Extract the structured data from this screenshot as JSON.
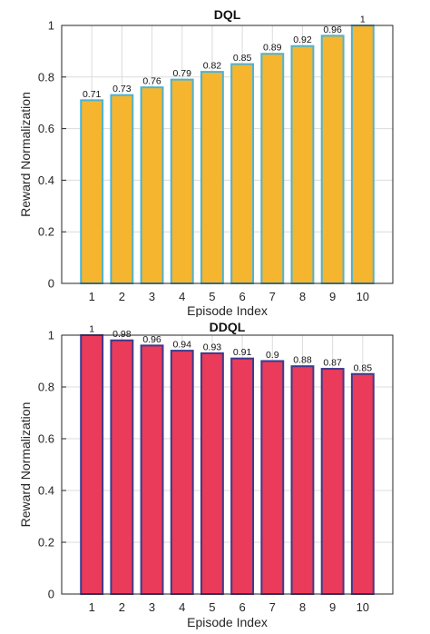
{
  "chart_data": [
    {
      "type": "bar",
      "title": "DQL",
      "xlabel": "Episode Index",
      "ylabel": "Reward Normalization",
      "categories": [
        "1",
        "2",
        "3",
        "4",
        "5",
        "6",
        "7",
        "8",
        "9",
        "10"
      ],
      "values": [
        0.71,
        0.73,
        0.76,
        0.79,
        0.82,
        0.85,
        0.89,
        0.92,
        0.96,
        1
      ],
      "data_labels": [
        "0.71",
        "0.73",
        "0.76",
        "0.79",
        "0.82",
        "0.85",
        "0.89",
        "0.92",
        "0.96",
        "1"
      ],
      "yticks": [
        "0",
        "0.2",
        "0.4",
        "0.6",
        "0.8",
        "1"
      ],
      "ylim": [
        0,
        1
      ],
      "grid": true,
      "bar_color": "#f5b52e",
      "bar_edge_color": "#4ab3d6"
    },
    {
      "type": "bar",
      "title": "DDQL",
      "xlabel": "Episode Index",
      "ylabel": "Reward Normalization",
      "categories": [
        "1",
        "2",
        "3",
        "4",
        "5",
        "6",
        "7",
        "8",
        "9",
        "10"
      ],
      "values": [
        1,
        0.98,
        0.96,
        0.94,
        0.93,
        0.91,
        0.9,
        0.88,
        0.87,
        0.85
      ],
      "data_labels": [
        "1",
        "0.98",
        "0.96",
        "0.94",
        "0.93",
        "0.91",
        "0.9",
        "0.88",
        "0.87",
        "0.85"
      ],
      "yticks": [
        "0",
        "0.2",
        "0.4",
        "0.6",
        "0.8",
        "1"
      ],
      "ylim": [
        0,
        1
      ],
      "grid": true,
      "bar_color": "#ea3b5a",
      "bar_edge_color": "#3d3a8c"
    }
  ]
}
